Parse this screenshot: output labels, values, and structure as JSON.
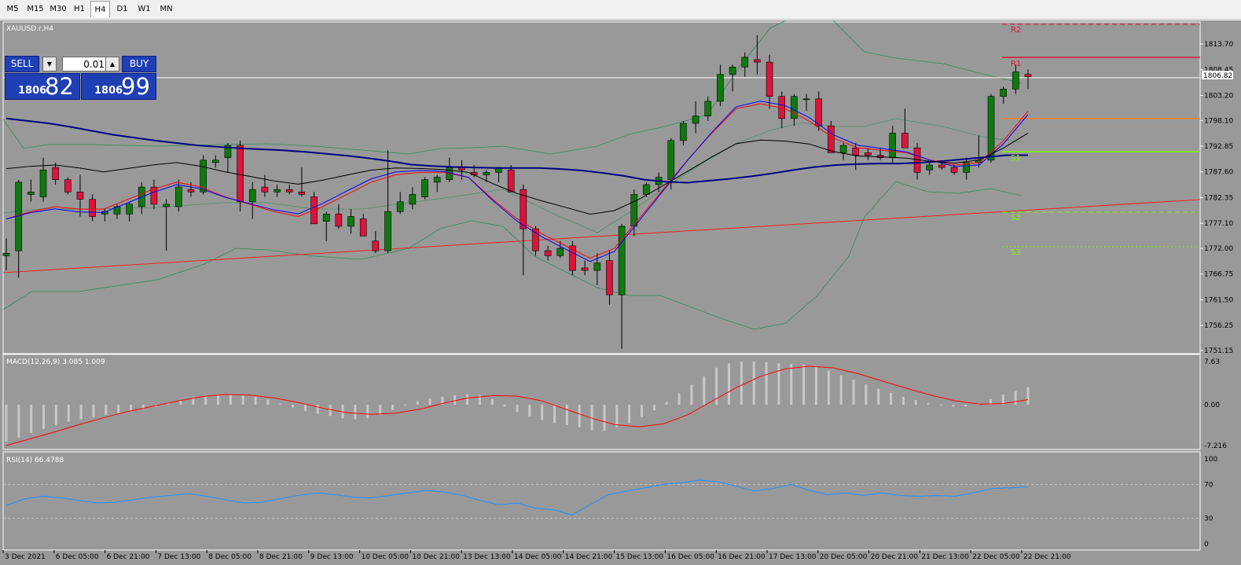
{
  "toolbar": {
    "timeframes": [
      "M5",
      "M15",
      "M30",
      "H1",
      "H4",
      "D1",
      "W1",
      "MN"
    ],
    "active": "H4"
  },
  "main_chart": {
    "symbol_label": "XAUUSD.r,H4",
    "current_price": "1806.82",
    "price_ticks": [
      "1813.70",
      "1808.45",
      "1803.20",
      "1798.10",
      "1792.85",
      "1787.60",
      "1782.35",
      "1777.10",
      "1772.00",
      "1766.75",
      "1761.50",
      "1756.25",
      "1751.15"
    ],
    "pivot_labels": {
      "r2": "R2",
      "r1": "R1",
      "s1": "S1",
      "s2": "S2",
      "s3": "S3"
    },
    "date_labels": [
      "3 Dec 2021",
      "6 Dec 05:00",
      "6 Dec 21:00",
      "7 Dec 13:00",
      "8 Dec 05:00",
      "8 Dec 21:00",
      "9 Dec 13:00",
      "10 Dec 05:00",
      "10 Dec 21:00",
      "13 Dec 13:00",
      "14 Dec 05:00",
      "14 Dec 21:00",
      "15 Dec 13:00",
      "16 Dec 05:00",
      "16 Dec 21:00",
      "17 Dec 13:00",
      "20 Dec 05:00",
      "20 Dec 21:00",
      "21 Dec 13:00",
      "22 Dec 05:00",
      "22 Dec 21:00"
    ],
    "colors": {
      "bull": "#0e7a0e",
      "bear": "#dc143c",
      "ma_slow": "#000080",
      "ma_fast": "#ff0000",
      "ma_mid": "#0000ff",
      "ma_black": "#000000",
      "bollinger": "#2e8b57",
      "pivot_r": "#dc143c",
      "pivot_s": "#7cfc00",
      "orange": "#ff7f27",
      "trend": "#e8231e"
    },
    "candles": [
      [
        1770.5,
        1774.0,
        1767.5,
        1771.0
      ],
      [
        1771.5,
        1786.0,
        1766.0,
        1785.5
      ],
      [
        1783.0,
        1786.0,
        1781.5,
        1783.5
      ],
      [
        1782.5,
        1790.5,
        1781.5,
        1788.0
      ],
      [
        1788.5,
        1789.5,
        1785.0,
        1786.0
      ],
      [
        1786.0,
        1786.5,
        1783.0,
        1783.5
      ],
      [
        1783.5,
        1787.0,
        1778.5,
        1782.0
      ],
      [
        1782.0,
        1783.0,
        1777.5,
        1778.5
      ],
      [
        1779.0,
        1780.0,
        1777.5,
        1779.5
      ],
      [
        1779.0,
        1781.0,
        1778.0,
        1780.5
      ],
      [
        1779.0,
        1781.5,
        1777.5,
        1781.0
      ],
      [
        1780.5,
        1785.5,
        1779.0,
        1784.5
      ],
      [
        1784.5,
        1786.0,
        1780.0,
        1781.0
      ],
      [
        1780.5,
        1782.0,
        1771.5,
        1781.0
      ],
      [
        1780.5,
        1786.0,
        1779.5,
        1784.5
      ],
      [
        1784.0,
        1785.5,
        1782.5,
        1783.5
      ],
      [
        1783.5,
        1791.0,
        1783.0,
        1790.0
      ],
      [
        1789.5,
        1791.0,
        1788.5,
        1790.0
      ],
      [
        1790.5,
        1793.5,
        1787.5,
        1793.0
      ],
      [
        1793.0,
        1794.0,
        1779.5,
        1781.5
      ],
      [
        1781.5,
        1785.5,
        1778.0,
        1784.0
      ],
      [
        1784.5,
        1787.0,
        1782.5,
        1783.5
      ],
      [
        1783.5,
        1785.0,
        1782.5,
        1784.0
      ],
      [
        1784.0,
        1785.0,
        1783.0,
        1783.5
      ],
      [
        1783.5,
        1788.5,
        1782.5,
        1783.0
      ],
      [
        1782.5,
        1783.5,
        1777.0,
        1777.0
      ],
      [
        1777.5,
        1779.5,
        1773.5,
        1779.0
      ],
      [
        1779.0,
        1781.0,
        1776.0,
        1776.5
      ],
      [
        1776.5,
        1780.0,
        1775.0,
        1778.5
      ],
      [
        1778.0,
        1779.0,
        1774.5,
        1774.5
      ],
      [
        1773.5,
        1775.5,
        1771.0,
        1771.5
      ],
      [
        1771.5,
        1792.0,
        1771.0,
        1779.5
      ],
      [
        1779.5,
        1783.5,
        1779.0,
        1781.5
      ],
      [
        1781.0,
        1784.5,
        1780.0,
        1783.0
      ],
      [
        1782.5,
        1786.5,
        1782.0,
        1786.0
      ],
      [
        1785.5,
        1787.0,
        1783.5,
        1786.5
      ],
      [
        1786.0,
        1790.5,
        1785.5,
        1788.5
      ],
      [
        1788.5,
        1790.0,
        1786.0,
        1788.0
      ],
      [
        1787.5,
        1789.0,
        1786.5,
        1787.0
      ],
      [
        1787.0,
        1788.0,
        1785.5,
        1787.5
      ],
      [
        1787.5,
        1788.5,
        1785.5,
        1788.5
      ],
      [
        1788.0,
        1789.0,
        1783.5,
        1783.5
      ],
      [
        1784.0,
        1785.0,
        1766.5,
        1776.0
      ],
      [
        1776.0,
        1776.5,
        1770.5,
        1771.5
      ],
      [
        1771.5,
        1772.5,
        1769.5,
        1770.5
      ],
      [
        1770.5,
        1773.5,
        1770.0,
        1772.0
      ],
      [
        1772.5,
        1773.5,
        1766.5,
        1767.5
      ],
      [
        1768.0,
        1769.5,
        1766.5,
        1767.5
      ],
      [
        1767.5,
        1771.0,
        1764.5,
        1769.0
      ],
      [
        1769.5,
        1771.5,
        1760.5,
        1762.5
      ],
      [
        1762.5,
        1777.0,
        1751.5,
        1776.5
      ],
      [
        1776.5,
        1784.0,
        1774.5,
        1783.0
      ],
      [
        1783.0,
        1785.5,
        1782.5,
        1785.0
      ],
      [
        1785.0,
        1787.5,
        1783.5,
        1786.5
      ],
      [
        1786.0,
        1794.5,
        1784.0,
        1794.0
      ],
      [
        1794.0,
        1798.0,
        1793.0,
        1797.5
      ],
      [
        1797.5,
        1802.0,
        1795.5,
        1799.0
      ],
      [
        1799.0,
        1803.0,
        1798.0,
        1802.0
      ],
      [
        1802.0,
        1809.5,
        1801.0,
        1807.5
      ],
      [
        1807.5,
        1809.5,
        1804.0,
        1809.0
      ],
      [
        1809.0,
        1812.0,
        1807.0,
        1811.0
      ],
      [
        1810.5,
        1815.5,
        1807.5,
        1810.0
      ],
      [
        1810.0,
        1811.5,
        1800.5,
        1803.0
      ],
      [
        1803.0,
        1804.0,
        1796.5,
        1798.5
      ],
      [
        1798.5,
        1803.5,
        1797.0,
        1803.0
      ],
      [
        1802.5,
        1803.5,
        1800.0,
        1802.5
      ],
      [
        1802.5,
        1804.0,
        1796.0,
        1797.0
      ],
      [
        1797.0,
        1798.0,
        1791.5,
        1791.5
      ],
      [
        1791.5,
        1793.5,
        1790.0,
        1793.0
      ],
      [
        1792.5,
        1793.5,
        1788.0,
        1791.0
      ],
      [
        1791.5,
        1792.5,
        1790.0,
        1791.0
      ],
      [
        1791.0,
        1792.5,
        1790.0,
        1790.5
      ],
      [
        1790.5,
        1797.0,
        1789.5,
        1795.5
      ],
      [
        1795.5,
        1800.5,
        1792.5,
        1792.5
      ],
      [
        1792.5,
        1793.5,
        1786.0,
        1787.5
      ],
      [
        1788.0,
        1789.5,
        1787.0,
        1789.0
      ],
      [
        1789.0,
        1790.0,
        1788.0,
        1788.5
      ],
      [
        1788.5,
        1789.0,
        1787.0,
        1787.5
      ],
      [
        1787.5,
        1790.5,
        1786.0,
        1789.5
      ],
      [
        1789.5,
        1795.0,
        1788.5,
        1790.0
      ],
      [
        1790.0,
        1803.5,
        1789.5,
        1803.0
      ],
      [
        1803.0,
        1805.0,
        1801.5,
        1804.5
      ],
      [
        1804.5,
        1809.5,
        1803.5,
        1808.0
      ],
      [
        1807.5,
        1808.5,
        1804.5,
        1807.0
      ]
    ],
    "ma_slow_points": [
      1798.5,
      1798.0,
      1797.5,
      1796.8,
      1796.0,
      1795.2,
      1794.6,
      1794.0,
      1793.5,
      1793.0,
      1792.7,
      1792.4,
      1792.2,
      1792.0,
      1791.7,
      1791.3,
      1790.9,
      1790.4,
      1789.8,
      1789.1,
      1788.8,
      1788.6,
      1788.5,
      1788.4,
      1788.4,
      1788.4,
      1788.2,
      1787.9,
      1787.4,
      1786.8,
      1786.0,
      1785.6,
      1785.4,
      1785.8,
      1786.2,
      1786.7,
      1787.3,
      1788.0,
      1788.6,
      1789.0,
      1789.2,
      1789.3,
      1789.3,
      1789.5,
      1789.8,
      1790.2,
      1790.6,
      1791.0,
      1791.0
    ],
    "ma_fast_points": [
      1778.0,
      1779.5,
      1780.5,
      1780.0,
      1780.0,
      1782.0,
      1784.0,
      1785.5,
      1784.5,
      1782.5,
      1781.0,
      1779.5,
      1778.5,
      1780.5,
      1783.0,
      1785.5,
      1787.0,
      1787.5,
      1787.5,
      1786.5,
      1782.0,
      1778.0,
      1775.0,
      1772.5,
      1770.0,
      1772.0,
      1778.0,
      1784.0,
      1790.0,
      1795.5,
      1800.5,
      1801.5,
      1800.5,
      1798.0,
      1794.5,
      1792.5,
      1792.0,
      1791.5,
      1790.0,
      1789.0,
      1789.5,
      1794.0,
      1800.0
    ],
    "macd_label": "MACD(12,26,9) 3.085 1.009",
    "macd_ticks": [
      "7.63",
      "0.00",
      "-7.216"
    ],
    "macd_hist": [
      -6.5,
      -5.8,
      -5.0,
      -4.3,
      -3.6,
      -3.0,
      -2.6,
      -2.2,
      -1.8,
      -1.5,
      -1.2,
      -0.8,
      -0.4,
      0.2,
      0.8,
      1.3,
      1.6,
      1.8,
      1.8,
      1.6,
      1.4,
      0.9,
      0.2,
      -0.5,
      -1.1,
      -1.6,
      -2.0,
      -2.4,
      -2.6,
      -2.4,
      -1.8,
      -0.9,
      0.0,
      0.6,
      1.1,
      1.4,
      1.7,
      1.8,
      1.7,
      1.0,
      -0.3,
      -1.3,
      -2.1,
      -2.7,
      -3.2,
      -3.6,
      -4.0,
      -4.5,
      -4.6,
      -4.0,
      -3.2,
      -2.2,
      -1.0,
      0.5,
      2.0,
      3.5,
      5.0,
      6.5,
      7.3,
      7.6,
      7.6,
      7.5,
      7.3,
      7.2,
      7.0,
      6.6,
      6.0,
      5.2,
      4.4,
      3.6,
      2.8,
      2.1,
      1.4,
      0.8,
      0.3,
      -0.1,
      -0.3,
      -0.3,
      0.2,
      1.0,
      1.8,
      2.4,
      3.1
    ],
    "macd_signal": [
      -7.2,
      -6.0,
      -4.8,
      -3.5,
      -2.3,
      -1.2,
      -0.3,
      0.6,
      1.4,
      1.8,
      1.7,
      1.2,
      0.4,
      -0.6,
      -1.4,
      -1.7,
      -1.5,
      -0.8,
      0.3,
      1.2,
      1.6,
      1.5,
      0.7,
      -0.8,
      -2.3,
      -3.5,
      -3.9,
      -3.4,
      -1.8,
      0.6,
      3.0,
      5.0,
      6.3,
      6.8,
      6.5,
      5.5,
      4.2,
      2.9,
      1.7,
      0.7,
      0.1,
      0.2,
      0.9
    ],
    "rsi_label": "RSI(14) 66.4788",
    "rsi_ticks": [
      "100",
      "70",
      "30",
      "0"
    ],
    "rsi_values": [
      45,
      53,
      56,
      54,
      51,
      48,
      49,
      52,
      55,
      57,
      59,
      56,
      52,
      48,
      49,
      53,
      57,
      60,
      58,
      55,
      54,
      57,
      60,
      63,
      61,
      57,
      51,
      46,
      48,
      42,
      40,
      34,
      46,
      58,
      62,
      66,
      70,
      72,
      75,
      73,
      68,
      62,
      65,
      70,
      63,
      58,
      60,
      57,
      60,
      57,
      56,
      57,
      56,
      60,
      65,
      66,
      67
    ],
    "macd_colors": {
      "hist": "#c8c8c8",
      "signal": "#ff0000"
    },
    "rsi_color": "#1e90ff"
  },
  "trade_panel": {
    "sell_label": "SELL",
    "buy_label": "BUY",
    "lot": "0.01",
    "sell_price_small": "1806",
    "sell_price_big": "82",
    "buy_price_small": "1806",
    "buy_price_big": "99"
  }
}
